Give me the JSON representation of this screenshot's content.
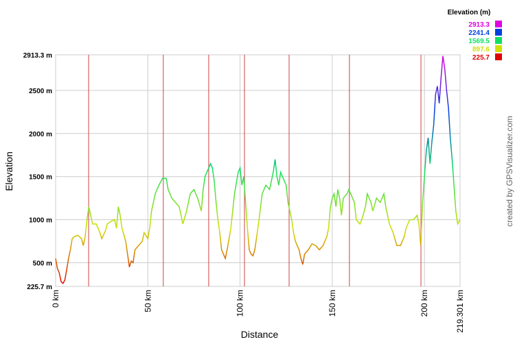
{
  "chart_data": {
    "type": "line",
    "x_label": "Distance",
    "y_label": "Elevation",
    "credit": "created by GPSVisualizer.com",
    "legend_title": "Elevation (m)",
    "color_scale": [
      {
        "value": 2913.3,
        "color": "#e000e0"
      },
      {
        "value": 2241.4,
        "color": "#0040e0"
      },
      {
        "value": 1569.5,
        "color": "#10e060"
      },
      {
        "value": 897.6,
        "color": "#d0e000"
      },
      {
        "value": 225.7,
        "color": "#e00000"
      }
    ],
    "xlim": [
      0,
      219.301
    ],
    "xticks": [
      {
        "value": 0,
        "label": "0 km"
      },
      {
        "value": 50,
        "label": "50 km"
      },
      {
        "value": 100,
        "label": "100 km"
      },
      {
        "value": 150,
        "label": "150 km"
      },
      {
        "value": 200,
        "label": "200 km"
      },
      {
        "value": 219.301,
        "label": "219.301 km"
      }
    ],
    "ylim": [
      225.7,
      2913.3
    ],
    "yticks": [
      {
        "value": 225.7,
        "label": "225.7 m"
      },
      {
        "value": 500,
        "label": "500 m"
      },
      {
        "value": 1000,
        "label": "1000 m"
      },
      {
        "value": 1500,
        "label": "1500 m"
      },
      {
        "value": 2000,
        "label": "2000 m"
      },
      {
        "value": 2500,
        "label": "2500 m"
      },
      {
        "value": 2913.3,
        "label": "2913.3 m"
      }
    ],
    "grid": true,
    "waypoints_x": [
      17.9,
      58.4,
      83.0,
      102.4,
      126.6,
      159.3,
      198.1
    ],
    "x": [
      0,
      1,
      2,
      3,
      4,
      5,
      6,
      7,
      8,
      9,
      10,
      12,
      14,
      15,
      16,
      17,
      18,
      19,
      20,
      22,
      24,
      25,
      27,
      28,
      30,
      32,
      33,
      34,
      35,
      36,
      38,
      39,
      40,
      41,
      42,
      43,
      45,
      47,
      48,
      50,
      51,
      52,
      53,
      54,
      56,
      58,
      60,
      61,
      63,
      65,
      67,
      69,
      71,
      73,
      75,
      77,
      79,
      80,
      81,
      82,
      84,
      85,
      86,
      87,
      88,
      89,
      90,
      92,
      93,
      95,
      97,
      99,
      100,
      101,
      102,
      103,
      104,
      105,
      106,
      107,
      108,
      110,
      112,
      114,
      116,
      118,
      119,
      120,
      121,
      122,
      124,
      125,
      126,
      128,
      129,
      130,
      132,
      133,
      134,
      135,
      137,
      139,
      141,
      143,
      145,
      147,
      148,
      149,
      150,
      151,
      152,
      153,
      154,
      155,
      156,
      158,
      159,
      160,
      162,
      163,
      165,
      166,
      168,
      169,
      171,
      172,
      174,
      176,
      178,
      179,
      181,
      183,
      185,
      187,
      189,
      190,
      192,
      194,
      196,
      197,
      198,
      199,
      200,
      201,
      202,
      203,
      204,
      205,
      206,
      207,
      208,
      209,
      210,
      211,
      212,
      213,
      214,
      215,
      216,
      217,
      218,
      219.301
    ],
    "values": [
      550,
      430,
      380,
      280,
      260,
      300,
      420,
      550,
      650,
      780,
      800,
      820,
      780,
      700,
      800,
      1000,
      1150,
      1050,
      950,
      950,
      850,
      780,
      870,
      950,
      980,
      1000,
      900,
      1150,
      1050,
      900,
      750,
      600,
      450,
      520,
      500,
      650,
      700,
      750,
      850,
      780,
      900,
      1100,
      1200,
      1300,
      1400,
      1480,
      1480,
      1350,
      1250,
      1200,
      1150,
      950,
      1100,
      1300,
      1350,
      1250,
      1100,
      1350,
      1500,
      1550,
      1650,
      1600,
      1450,
      1200,
      1000,
      850,
      650,
      550,
      650,
      900,
      1300,
      1550,
      1600,
      1400,
      1500,
      1200,
      900,
      650,
      600,
      580,
      650,
      950,
      1300,
      1400,
      1350,
      1550,
      1700,
      1500,
      1400,
      1550,
      1450,
      1400,
      1200,
      1000,
      850,
      750,
      650,
      550,
      480,
      600,
      650,
      720,
      700,
      650,
      700,
      800,
      900,
      1150,
      1250,
      1300,
      1150,
      1350,
      1250,
      1050,
      1250,
      1300,
      1350,
      1300,
      1200,
      1000,
      950,
      1000,
      1150,
      1300,
      1200,
      1100,
      1250,
      1200,
      1300,
      1150,
      950,
      850,
      700,
      700,
      800,
      900,
      1000,
      1000,
      1050,
      950,
      700,
      1200,
      1500,
      1800,
      1950,
      1650,
      1900,
      2100,
      2450,
      2550,
      2350,
      2650,
      2900,
      2750,
      2500,
      2300,
      1950,
      1700,
      1400,
      1100,
      950,
      1000
    ]
  }
}
